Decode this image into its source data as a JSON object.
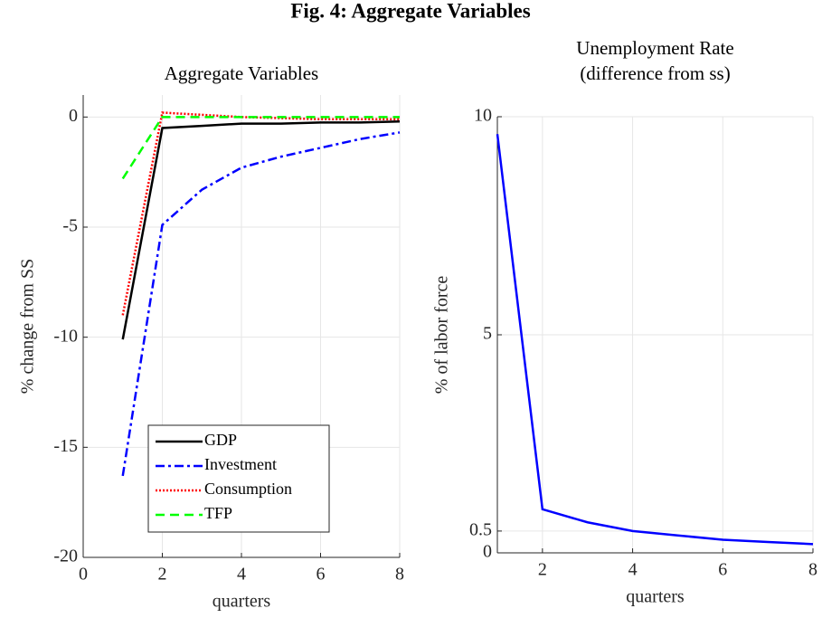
{
  "title": "Fig. 4: Aggregate Variables",
  "chart_data": [
    {
      "type": "line",
      "title": [
        "Aggregate Variables"
      ],
      "xlabel": "quarters",
      "ylabel": "% change from SS",
      "x": [
        1,
        2,
        3,
        4,
        5,
        6,
        7,
        8
      ],
      "series": [
        {
          "name": "GDP",
          "color": "#000000",
          "style": "solid",
          "values": [
            -10.1,
            -0.5,
            -0.4,
            -0.3,
            -0.3,
            -0.25,
            -0.25,
            -0.2
          ]
        },
        {
          "name": "Investment",
          "color": "#0000ff",
          "style": "dashdot",
          "values": [
            -16.3,
            -4.9,
            -3.3,
            -2.3,
            -1.8,
            -1.4,
            -1.0,
            -0.7
          ]
        },
        {
          "name": "Consumption",
          "color": "#ff0000",
          "style": "dotted",
          "values": [
            -9,
            0.2,
            0.1,
            0,
            -0.05,
            -0.1,
            -0.1,
            -0.1
          ]
        },
        {
          "name": "TFP",
          "color": "#00ff00",
          "style": "dashed",
          "values": [
            -2.8,
            0,
            0,
            0,
            0,
            0,
            0,
            0
          ]
        }
      ],
      "xlim": [
        0,
        8
      ],
      "xticks": [
        0,
        2,
        4,
        6,
        8
      ],
      "ylim": [
        -20,
        1
      ],
      "yticks": [
        -20,
        -15,
        -10,
        -5,
        0
      ],
      "grid": true,
      "legend": "lower left"
    },
    {
      "type": "line",
      "title": [
        "Unemployment Rate",
        "(difference from ss)"
      ],
      "xlabel": "quarters",
      "ylabel": "% of labor force",
      "x": [
        1,
        2,
        3,
        4,
        5,
        6,
        7,
        8
      ],
      "series": [
        {
          "color": "#0000ff",
          "style": "solid",
          "values": [
            9.6,
            1.0,
            0.7,
            0.5,
            0.4,
            0.3,
            0.25,
            0.2
          ]
        }
      ],
      "xlim": [
        1,
        8
      ],
      "xticks": [
        2,
        4,
        6,
        8
      ],
      "ylim": [
        0,
        10
      ],
      "yticks": [
        0,
        0.5,
        5,
        10
      ],
      "grid": true
    }
  ]
}
